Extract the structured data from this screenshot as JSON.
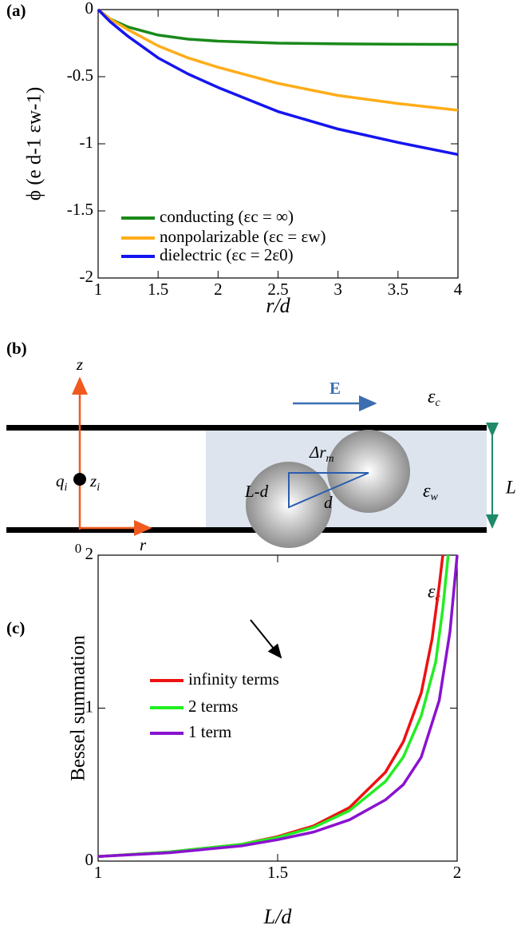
{
  "chart_data": [
    {
      "type": "line",
      "panel_label": "(a)",
      "xlabel": "r/d",
      "ylabel": "ϕ (e d-1 εw-1)",
      "x": [
        1,
        1.1,
        1.25,
        1.5,
        1.75,
        2,
        2.5,
        3,
        3.5,
        4
      ],
      "series": [
        {
          "name": "conducting (εc = ∞)",
          "color": "#1a8a1a",
          "values": [
            0,
            -0.07,
            -0.13,
            -0.19,
            -0.22,
            -0.235,
            -0.25,
            -0.255,
            -0.258,
            -0.26
          ]
        },
        {
          "name": "nonpolarizable (εc = εw)",
          "color": "#ffad1a",
          "values": [
            0,
            -0.07,
            -0.15,
            -0.27,
            -0.36,
            -0.43,
            -0.55,
            -0.64,
            -0.7,
            -0.75
          ]
        },
        {
          "name": "dielectric (εc = 2ε0)",
          "color": "#1515f0",
          "values": [
            0,
            -0.09,
            -0.2,
            -0.36,
            -0.48,
            -0.58,
            -0.76,
            -0.89,
            -0.99,
            -1.08
          ]
        }
      ],
      "xlim": [
        1,
        4
      ],
      "ylim": [
        -2,
        0
      ],
      "xticks": [
        1,
        1.5,
        2,
        2.5,
        3,
        3.5,
        4
      ],
      "yticks": [
        0,
        -0.5,
        -1,
        -1.5,
        -2
      ],
      "grid": false
    },
    {
      "type": "line",
      "panel_label": "(c)",
      "xlabel": "L/d",
      "ylabel": "Bessel summation",
      "series": [
        {
          "name": "infinity terms",
          "color": "#ee1111",
          "x": [
            1,
            1.2,
            1.4,
            1.5,
            1.6,
            1.7,
            1.8,
            1.85,
            1.9,
            1.93,
            1.95,
            1.96
          ],
          "values": [
            0.03,
            0.06,
            0.11,
            0.16,
            0.23,
            0.35,
            0.58,
            0.78,
            1.1,
            1.45,
            1.8,
            2
          ]
        },
        {
          "name": "2 terms",
          "color": "#22ee22",
          "x": [
            1,
            1.2,
            1.4,
            1.5,
            1.6,
            1.7,
            1.8,
            1.85,
            1.9,
            1.94,
            1.96,
            1.975
          ],
          "values": [
            0.03,
            0.06,
            0.11,
            0.155,
            0.22,
            0.33,
            0.52,
            0.68,
            0.95,
            1.3,
            1.65,
            2
          ]
        },
        {
          "name": "1 term",
          "color": "#8a12d0",
          "x": [
            1,
            1.2,
            1.4,
            1.5,
            1.6,
            1.7,
            1.8,
            1.85,
            1.9,
            1.95,
            1.98,
            2
          ],
          "values": [
            0.03,
            0.055,
            0.1,
            0.14,
            0.19,
            0.27,
            0.4,
            0.5,
            0.68,
            1.05,
            1.5,
            2
          ]
        }
      ],
      "xlim": [
        1,
        2
      ],
      "ylim": [
        0,
        2
      ],
      "xticks": [
        1,
        1.5,
        2
      ],
      "yticks": [
        0,
        1,
        2
      ],
      "grid": false
    }
  ],
  "diagram": {
    "panel_label": "(b)",
    "z": {
      "text": "z"
    },
    "r": {
      "text": "r"
    },
    "origin": {
      "text": "0"
    },
    "field": {
      "text": "E"
    },
    "q": {
      "text": "q",
      "sub": "i"
    },
    "zi": {
      "text": "z",
      "sub": "i"
    },
    "eps_top": {
      "text": "ε",
      "sub": "c"
    },
    "eps_mid": {
      "text": "ε",
      "sub": "w"
    },
    "eps_bottom": {
      "text": "ε",
      "sub": "c"
    },
    "width": {
      "text": "L"
    },
    "dr": {
      "text": "Δr",
      "sub": "m"
    },
    "ld": {
      "text": "L-d"
    },
    "d": {
      "text": "d"
    }
  }
}
